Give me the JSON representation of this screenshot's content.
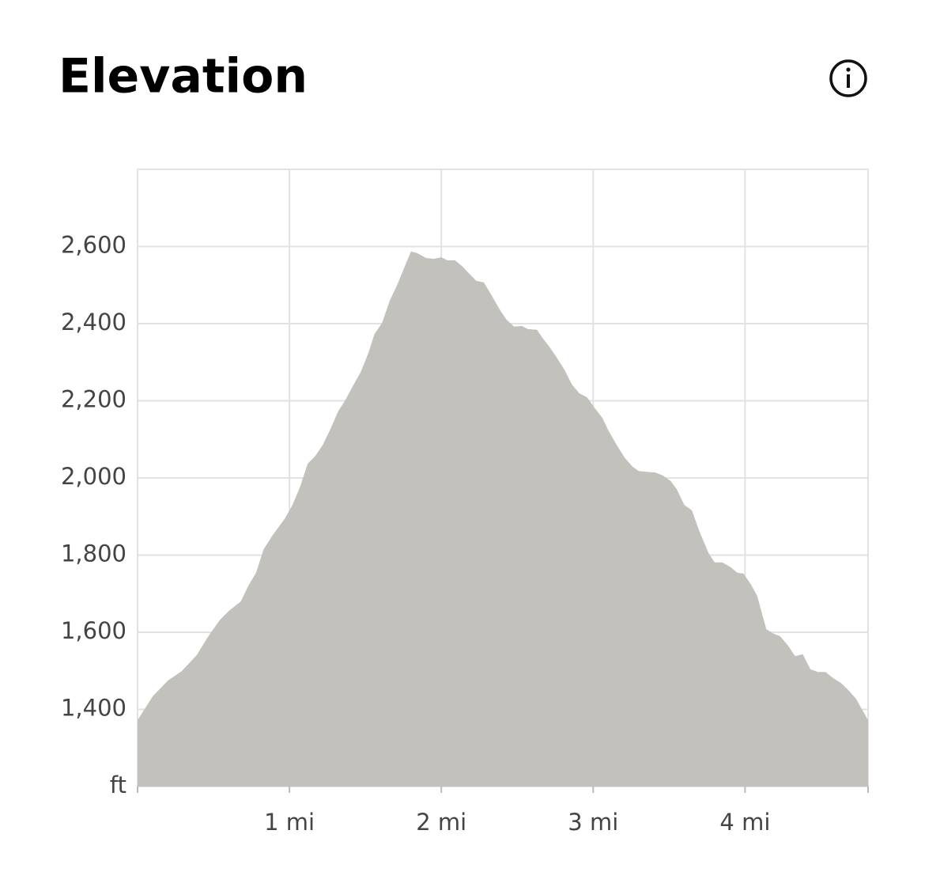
{
  "chart_data": {
    "type": "area",
    "title": "Elevation",
    "y_unit_label": "ft",
    "color": "#c2c1bb",
    "x": [
      0,
      0.1,
      0.2,
      0.29,
      0.39,
      0.46,
      0.54,
      0.6,
      0.68,
      0.73,
      0.78,
      0.83,
      0.89,
      0.97,
      1.02,
      1.07,
      1.12,
      1.17,
      1.22,
      1.27,
      1.32,
      1.37,
      1.42,
      1.47,
      1.52,
      1.56,
      1.61,
      1.66,
      1.71,
      1.8,
      1.84,
      1.9,
      1.95,
      2.0,
      2.04,
      2.09,
      2.14,
      2.19,
      2.23,
      2.28,
      2.33,
      2.39,
      2.43,
      2.48,
      2.53,
      2.57,
      2.63,
      2.67,
      2.71,
      2.76,
      2.81,
      2.86,
      2.91,
      2.96,
      3.01,
      3.06,
      3.1,
      3.16,
      3.21,
      3.26,
      3.3,
      3.35,
      3.41,
      3.46,
      3.51,
      3.55,
      3.6,
      3.65,
      3.7,
      3.76,
      3.8,
      3.85,
      3.9,
      3.95,
      3.99,
      4.04,
      4.08,
      4.14,
      4.19,
      4.23,
      4.28,
      4.33,
      4.38,
      4.43,
      4.48,
      4.53,
      4.58,
      4.63,
      4.68,
      4.73,
      4.81
    ],
    "values": [
      1372,
      1434,
      1475,
      1499,
      1541,
      1586,
      1631,
      1655,
      1680,
      1721,
      1754,
      1815,
      1852,
      1895,
      1930,
      1977,
      2037,
      2057,
      2086,
      2127,
      2172,
      2203,
      2240,
      2275,
      2324,
      2373,
      2402,
      2459,
      2501,
      2587,
      2583,
      2570,
      2568,
      2572,
      2564,
      2564,
      2548,
      2527,
      2511,
      2507,
      2474,
      2433,
      2410,
      2392,
      2394,
      2386,
      2384,
      2361,
      2341,
      2312,
      2281,
      2242,
      2219,
      2209,
      2181,
      2156,
      2123,
      2082,
      2051,
      2029,
      2018,
      2016,
      2014,
      2006,
      1992,
      1971,
      1930,
      1916,
      1861,
      1805,
      1781,
      1781,
      1770,
      1754,
      1752,
      1723,
      1694,
      1608,
      1596,
      1590,
      1567,
      1538,
      1543,
      1504,
      1497,
      1497,
      1481,
      1469,
      1450,
      1428,
      1372
    ],
    "xlim": [
      0,
      4.81
    ],
    "ylim": [
      1200,
      2800
    ],
    "xticks": [
      {
        "value": 1,
        "label": "1 mi"
      },
      {
        "value": 2,
        "label": "2 mi"
      },
      {
        "value": 3,
        "label": "3 mi"
      },
      {
        "value": 4,
        "label": "4 mi"
      }
    ],
    "yticks": [
      {
        "value": 1400,
        "label": "1,400"
      },
      {
        "value": 1600,
        "label": "1,600"
      },
      {
        "value": 1800,
        "label": "1,800"
      },
      {
        "value": 2000,
        "label": "2,000"
      },
      {
        "value": 2200,
        "label": "2,200"
      },
      {
        "value": 2400,
        "label": "2,400"
      },
      {
        "value": 2600,
        "label": "2,600"
      }
    ],
    "grid": true
  }
}
